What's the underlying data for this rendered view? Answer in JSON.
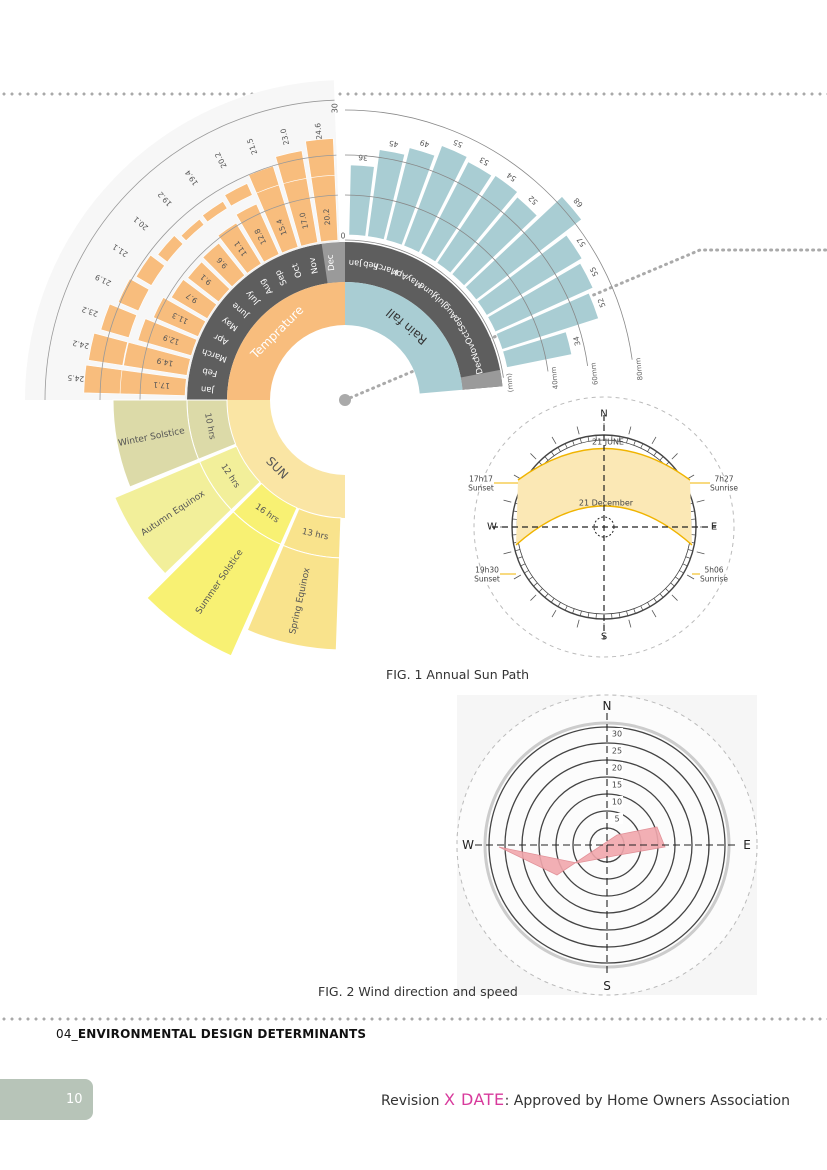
{
  "temperature_chart": {
    "months": [
      "Jan",
      "Feb",
      "March",
      "Apr",
      "May",
      "June",
      "July",
      "Aug",
      "Sep",
      "Oct",
      "Nov",
      "Dec"
    ],
    "temp_values": [
      "17.1",
      "14.9",
      "12.9",
      "11.3",
      "9.7",
      "9.1",
      "9.6",
      "11.1",
      "12.8",
      "15.4",
      "17.0",
      "20.2"
    ],
    "outer_values": [
      "24.5",
      "24.2",
      "23.2",
      "21.9",
      "21.1",
      "20.1",
      "19.2",
      "19.4",
      "20.2",
      "21.5",
      "23.0",
      "24.6"
    ],
    "top_value": "30",
    "scale_zero": "0",
    "label": "Temprature"
  },
  "rainfall_chart": {
    "months": [
      "Jan",
      "Feb",
      "March",
      "Apr",
      "May",
      "June",
      "July",
      "Aug",
      "Sep",
      "Oct",
      "Nov",
      "Dec"
    ],
    "values": [
      36,
      45,
      49,
      55,
      53,
      54,
      52,
      68,
      57,
      55,
      52,
      34
    ],
    "value_labels": [
      "36",
      "45",
      "49",
      "55",
      "53",
      "54",
      "52",
      "68",
      "57",
      "55",
      "52",
      "34"
    ],
    "ring_labels": [
      "(mm)",
      "40mm",
      "60mm",
      "80mm"
    ],
    "label": "Rain fall"
  },
  "sun_chart": {
    "label": "SUN",
    "segments": [
      {
        "name": "Winter Solstice",
        "hours": "10 hrs",
        "color": "#dcdaa8"
      },
      {
        "name": "Autumn Equinox",
        "hours": "12 hrs",
        "color": "#f2ef9a"
      },
      {
        "name": "Summer Solstice",
        "hours": "16 hrs",
        "color": "#f8f173"
      },
      {
        "name": "Spring Equinox",
        "hours": "13 hrs",
        "color": "#f9e38c"
      }
    ]
  },
  "colors": {
    "temperature": "#f8bd7d",
    "rainfall": "#a9cdd3",
    "month_ring": "#5e5e5e",
    "sun_inner": "#fae5a4",
    "wind": "#f1a7ad"
  },
  "sun_path": {
    "north": "N",
    "south": "S",
    "east": "E",
    "west": "W",
    "june_label": "21 JUNE",
    "december_label": "21 December",
    "left_top_time": "17h17",
    "left_top_event": "Sunset",
    "right_top_time": "7h27",
    "right_top_event": "Sunrise",
    "left_bottom_time": "19h30",
    "left_bottom_event": "Sunset",
    "right_bottom_time": "5h06",
    "right_bottom_event": "Sunrise",
    "caption": "FIG. 1 Annual Sun Path"
  },
  "wind_rose": {
    "north": "N",
    "south": "S",
    "east": "E",
    "west": "W",
    "scale": [
      "5",
      "10",
      "15",
      "20",
      "25",
      "30"
    ],
    "caption": "FIG. 2 Wind direction and speed"
  },
  "footer": {
    "section_number": "04_",
    "section_title": "ENVIRONMENTAL DESIGN DETERMINANTS",
    "page_number": "10",
    "revision_prefix": "Revision",
    "revision_highlight": "X DATE",
    "revision_suffix": ": Approved by Home Owners Association"
  }
}
